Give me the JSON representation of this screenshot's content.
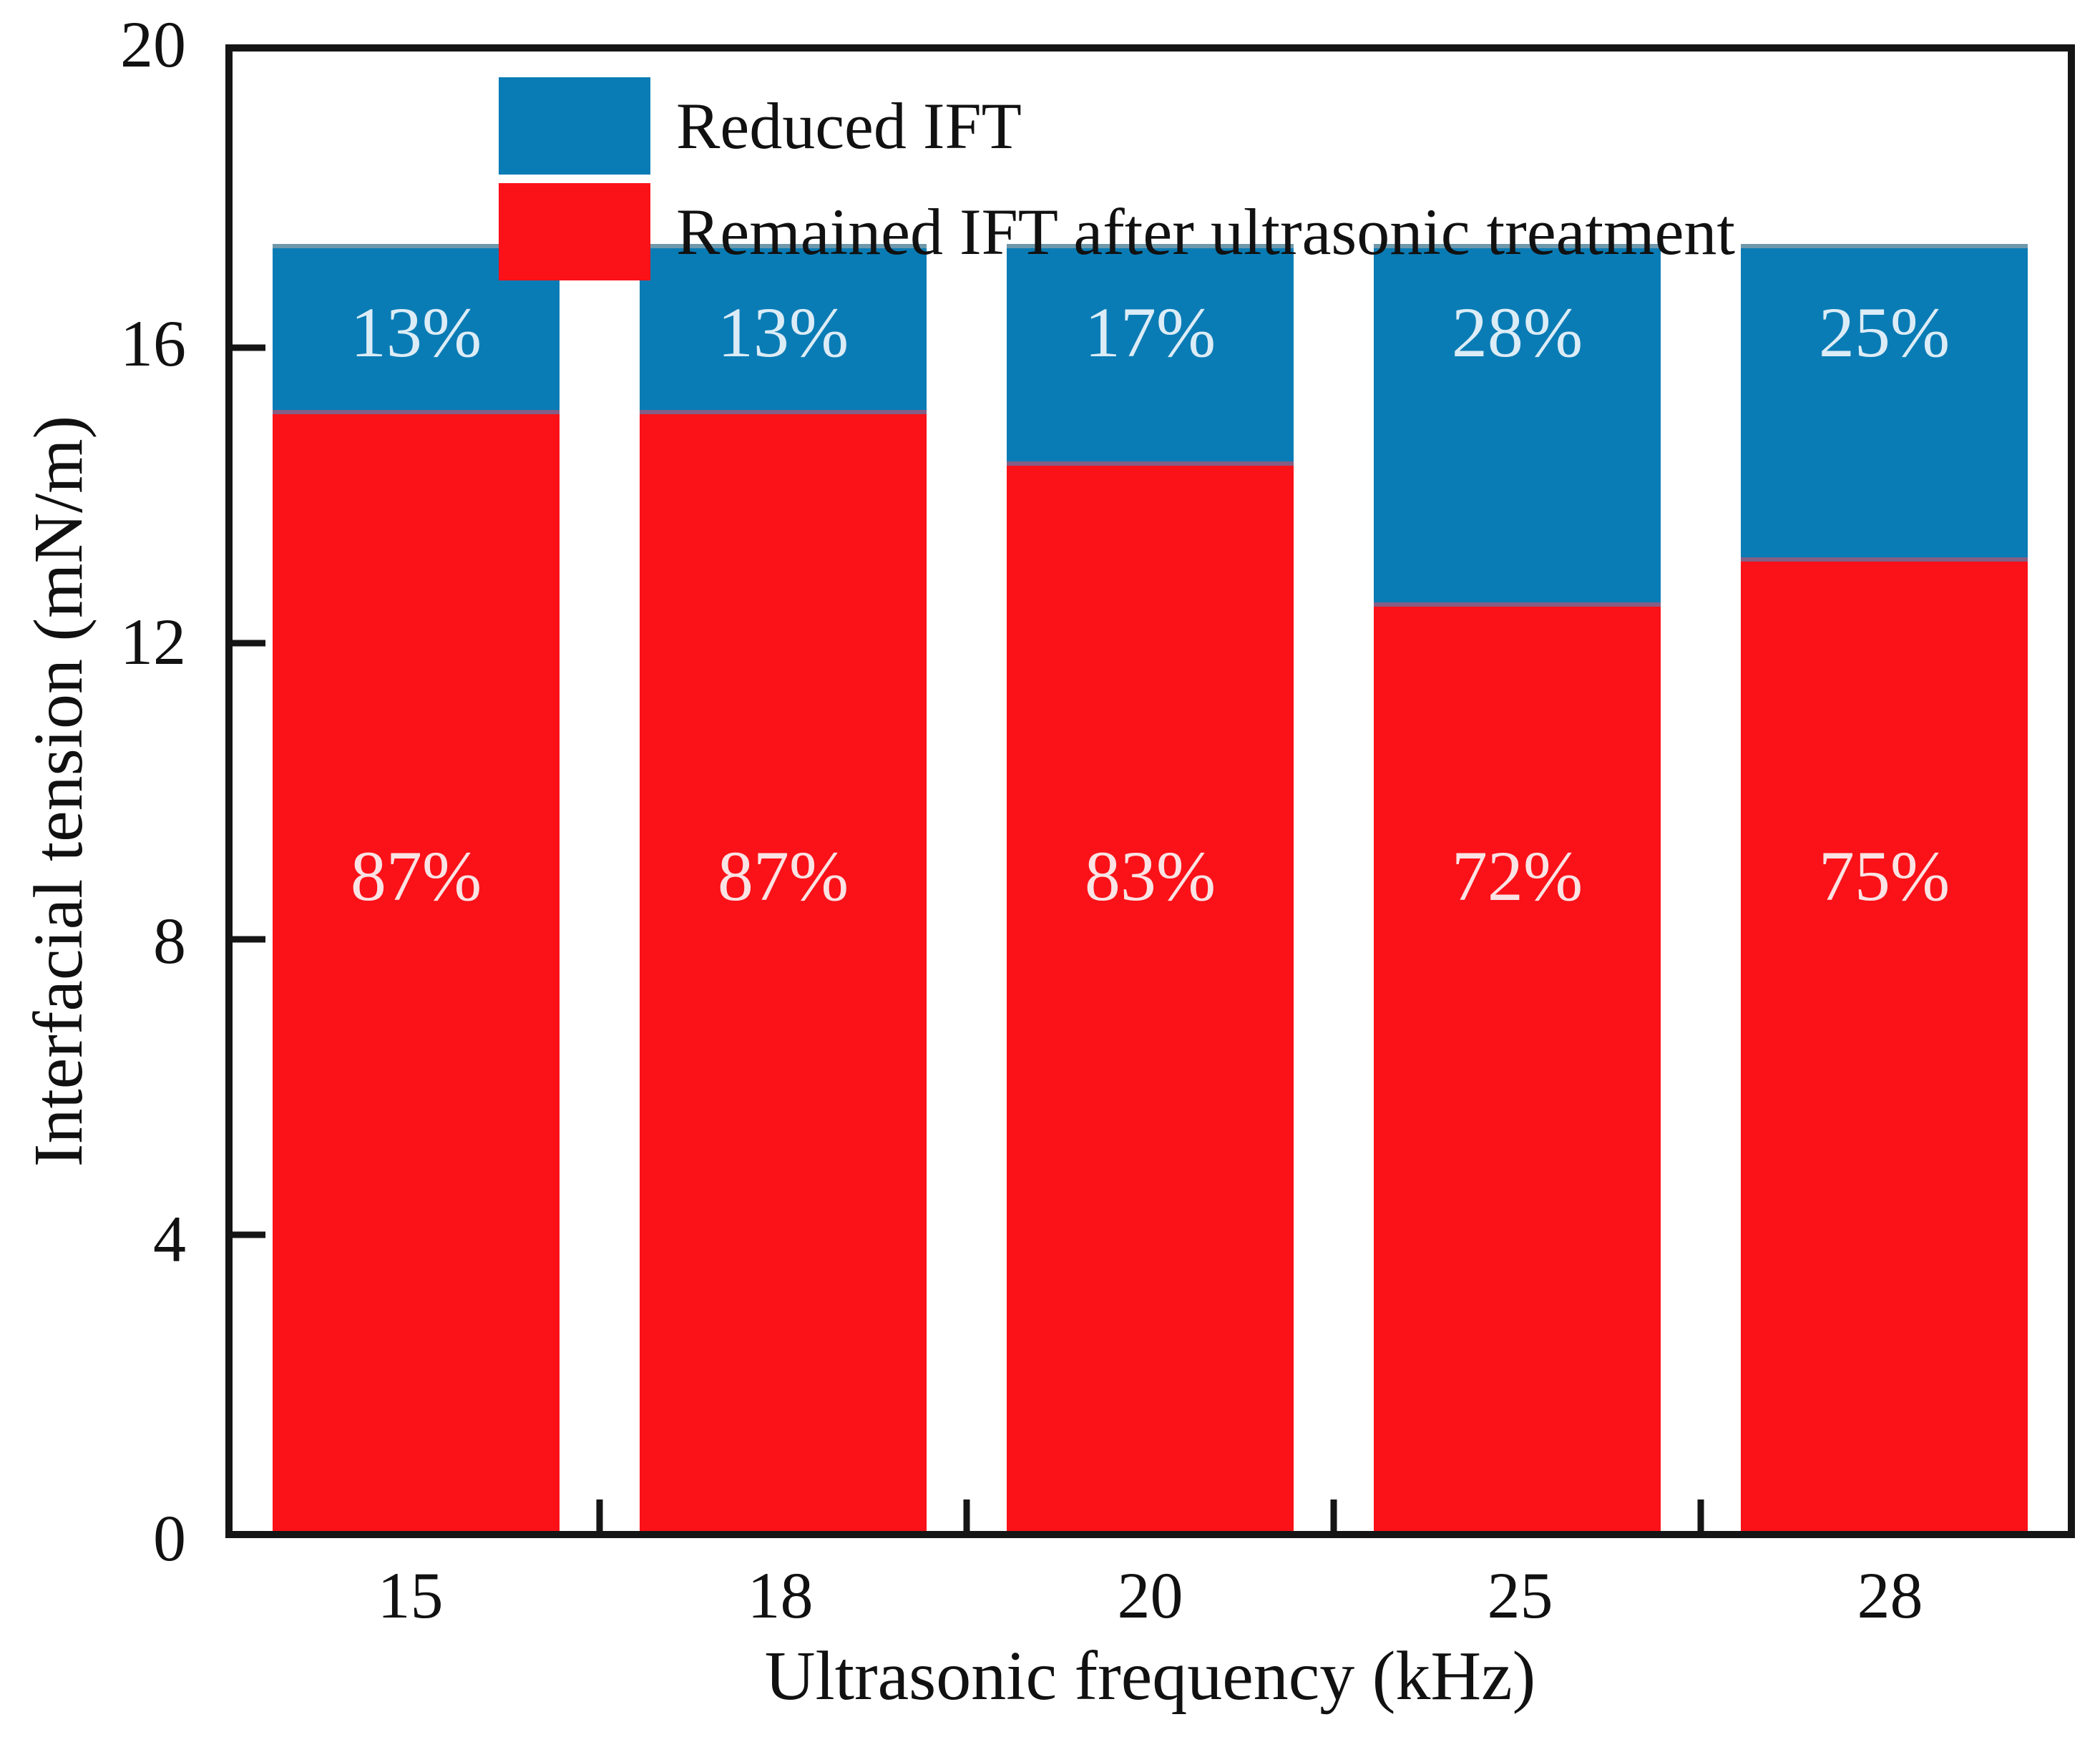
{
  "chart_data": {
    "type": "bar",
    "stacked": true,
    "title": "",
    "xlabel": "Ultrasonic frequency (kHz)",
    "ylabel": "Interfacial tension (mN/m)",
    "categories": [
      "15",
      "18",
      "20",
      "25",
      "28"
    ],
    "ylim": [
      0,
      20
    ],
    "yticks": [
      0,
      4,
      8,
      12,
      16,
      20
    ],
    "bar_total": 17.4,
    "series": [
      {
        "name": "Remained IFT after ultrasonic treatment",
        "color": "#fb1118",
        "label_color": "#fae3e4",
        "values": [
          15.1,
          15.1,
          14.4,
          12.5,
          13.1
        ],
        "labels": [
          "87%",
          "87%",
          "83%",
          "72%",
          "75%"
        ]
      },
      {
        "name": "Reduced IFT",
        "color": "#0a7cb5",
        "label_color": "#dcecf6",
        "values": [
          2.3,
          2.3,
          3.0,
          4.9,
          4.3
        ],
        "labels": [
          "13%",
          "13%",
          "17%",
          "28%",
          "25%"
        ]
      }
    ],
    "legend_position": "top-left-inside",
    "grid": false
  }
}
